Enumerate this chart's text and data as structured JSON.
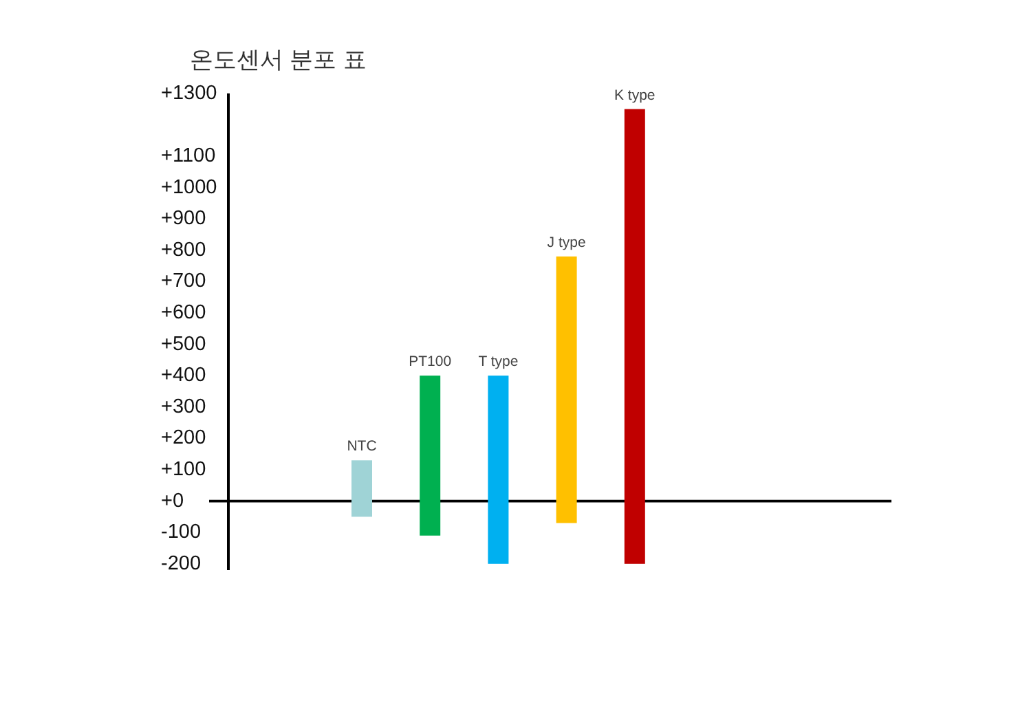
{
  "chart_data": {
    "type": "bar",
    "title": "온도센서 분포 표",
    "categories": [
      "NTC",
      "PT100",
      "T type",
      "J type",
      "K type"
    ],
    "base": [
      -50,
      -110,
      -200,
      -70,
      -200
    ],
    "values": [
      180,
      510,
      600,
      850,
      1450
    ],
    "colors": [
      "#9fd3d6",
      "#00b050",
      "#00b0f0",
      "#ffc000",
      "#c00000"
    ],
    "ylim": [
      -220,
      1300
    ],
    "yticks": [
      -200,
      -100,
      {
        "value": 0,
        "label": "+0"
      },
      {
        "value": 100,
        "label": "+100"
      },
      {
        "value": 200,
        "label": "+200"
      },
      {
        "value": 300,
        "label": "+300"
      },
      {
        "value": 400,
        "label": "+400"
      },
      {
        "value": 500,
        "label": "+500"
      },
      {
        "value": 600,
        "label": "+600"
      },
      {
        "value": 700,
        "label": "+700"
      },
      {
        "value": 800,
        "label": "+800"
      },
      {
        "value": 900,
        "label": "+900"
      },
      {
        "value": 1000,
        "label": "+1000"
      },
      {
        "value": 1100,
        "label": "+1100"
      },
      {
        "value": 1300,
        "label": "+1300"
      }
    ]
  }
}
